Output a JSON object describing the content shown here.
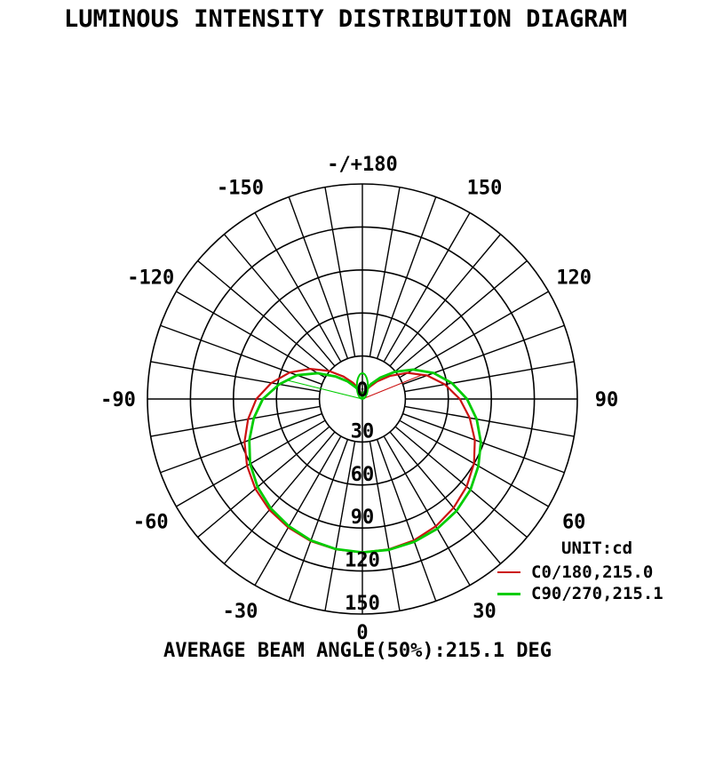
{
  "title": "LUMINOUS INTENSITY DISTRIBUTION DIAGRAM",
  "caption": "AVERAGE BEAM ANGLE(50%):215.1 DEG",
  "legend": {
    "unit_label": "UNIT:cd",
    "entries": [
      {
        "label": "C0/180,215.0",
        "color": "#cc1111",
        "swatch_thickness": 2
      },
      {
        "label": "C90/270,215.1",
        "color": "#00cc00",
        "swatch_thickness": 3
      }
    ]
  },
  "chart_data": {
    "type": "line",
    "subtype": "polar",
    "title": "LUMINOUS INTENSITY DISTRIBUTION DIAGRAM",
    "unit": "cd",
    "angle_unit": "deg",
    "angle_zero_position": "bottom",
    "average_beam_angle_50pct_deg": 215.1,
    "radial_ticks": [
      0,
      30,
      60,
      90,
      120,
      150
    ],
    "radial_max": 150,
    "grid": {
      "spoke_step_deg": 10,
      "spoke_inner_radius": 30
    },
    "angle_tick_labels": [
      {
        "deg": 180,
        "label": "-/+180"
      },
      {
        "deg": 150,
        "label": "150"
      },
      {
        "deg": 120,
        "label": "120"
      },
      {
        "deg": 90,
        "label": "90"
      },
      {
        "deg": 60,
        "label": "60"
      },
      {
        "deg": 30,
        "label": "30"
      },
      {
        "deg": 0,
        "label": "0"
      },
      {
        "deg": -30,
        "label": "-30"
      },
      {
        "deg": -60,
        "label": "-60"
      },
      {
        "deg": -90,
        "label": "-90"
      },
      {
        "deg": -120,
        "label": "-120"
      },
      {
        "deg": -150,
        "label": "-150"
      }
    ],
    "series": [
      {
        "name": "C0/180",
        "label": "C0/180,215.0",
        "beam_angle_deg": 215.0,
        "color": "#cc1111",
        "stroke_width": 2.2,
        "closing_chord": {
          "deg": 112,
          "cd": 45.5
        },
        "points": [
          [
            -180,
            0.6
          ],
          [
            -170,
            3.5
          ],
          [
            -160,
            7.5
          ],
          [
            -150,
            13
          ],
          [
            -140,
            20.5
          ],
          [
            -130,
            30.5
          ],
          [
            -120,
            42
          ],
          [
            -110,
            54
          ],
          [
            -100,
            64.5
          ],
          [
            -90,
            74
          ],
          [
            -80,
            81
          ],
          [
            -70,
            87.5
          ],
          [
            -60,
            93
          ],
          [
            -50,
            97.5
          ],
          [
            -40,
            101
          ],
          [
            -30,
            103.5
          ],
          [
            -20,
            105.5
          ],
          [
            -10,
            106.5
          ],
          [
            0,
            107
          ],
          [
            10,
            106.5
          ],
          [
            20,
            105
          ],
          [
            30,
            102.5
          ],
          [
            40,
            99
          ],
          [
            50,
            95
          ],
          [
            60,
            90
          ],
          [
            70,
            83.5
          ],
          [
            80,
            76
          ],
          [
            90,
            68
          ],
          [
            100,
            58.5
          ],
          [
            110,
            48
          ],
          [
            120,
            36.5
          ],
          [
            130,
            25
          ],
          [
            140,
            16
          ],
          [
            150,
            9.5
          ],
          [
            160,
            5
          ],
          [
            170,
            2.2
          ],
          [
            180,
            0.6
          ]
        ]
      },
      {
        "name": "C90/270",
        "label": "C90/270,215.1",
        "beam_angle_deg": 215.1,
        "color": "#00cc00",
        "stroke_width": 2.8,
        "closing_chord": {
          "deg": -104,
          "cd": 54.5
        },
        "zero_loop": {
          "top_cd": 18,
          "half_width_cd": 4
        },
        "points": [
          [
            -180,
            0.6
          ],
          [
            -170,
            2.5
          ],
          [
            -160,
            5.5
          ],
          [
            -150,
            9.5
          ],
          [
            -140,
            16
          ],
          [
            -130,
            24.5
          ],
          [
            -120,
            36
          ],
          [
            -110,
            48.5
          ],
          [
            -100,
            59
          ],
          [
            -90,
            69.5
          ],
          [
            -80,
            77
          ],
          [
            -70,
            84
          ],
          [
            -60,
            90.5
          ],
          [
            -50,
            95.5
          ],
          [
            -40,
            99.5
          ],
          [
            -30,
            102.5
          ],
          [
            -20,
            105
          ],
          [
            -10,
            106.3
          ],
          [
            0,
            107
          ],
          [
            10,
            106.8
          ],
          [
            20,
            106
          ],
          [
            30,
            104.5
          ],
          [
            40,
            102
          ],
          [
            50,
            98.5
          ],
          [
            60,
            93.5
          ],
          [
            70,
            88
          ],
          [
            80,
            81
          ],
          [
            90,
            73
          ],
          [
            100,
            63.5
          ],
          [
            110,
            53
          ],
          [
            120,
            41
          ],
          [
            130,
            29.5
          ],
          [
            140,
            19.5
          ],
          [
            150,
            12
          ],
          [
            160,
            6.5
          ],
          [
            170,
            3
          ],
          [
            180,
            0.6
          ]
        ]
      }
    ]
  }
}
